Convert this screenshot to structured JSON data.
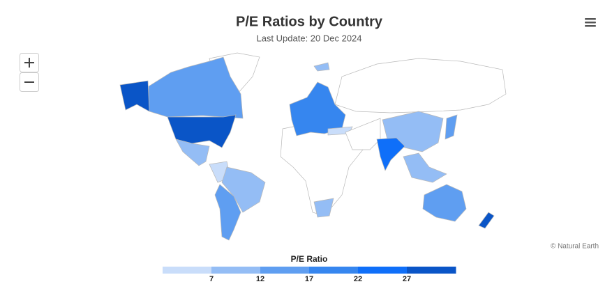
{
  "chart_data": {
    "type": "choropleth",
    "title": "P/E Ratios by Country",
    "subtitle": "Last Update: 20 Dec 2024",
    "credit": "© Natural Earth",
    "legend": {
      "title": "P/E Ratio",
      "range": [
        2,
        32
      ],
      "ticks": [
        7,
        12,
        17,
        22,
        27
      ],
      "colors": [
        "#c9ddfa",
        "#94bdf5",
        "#5f9ef1",
        "#3686ef",
        "#0f6ff9",
        "#0a55c7"
      ]
    }
  }
}
